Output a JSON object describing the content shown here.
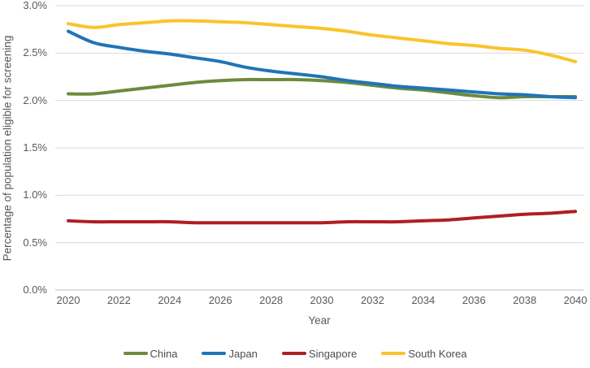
{
  "chart_data": {
    "type": "line",
    "title": "",
    "xlabel": "Year",
    "ylabel": "Percentage of population eligible for screening",
    "x": [
      2020,
      2021,
      2022,
      2023,
      2024,
      2025,
      2026,
      2027,
      2028,
      2029,
      2030,
      2031,
      2032,
      2033,
      2034,
      2035,
      2036,
      2037,
      2038,
      2039,
      2040
    ],
    "xlim": [
      2020,
      2040
    ],
    "ylim": [
      0,
      3
    ],
    "grid": "horizontal",
    "legend_position": "bottom",
    "ytick_values": [
      0,
      0.5,
      1,
      1.5,
      2,
      2.5,
      3
    ],
    "ytick_labels": [
      "0.0%",
      "0.5%",
      "1.0%",
      "1.5%",
      "2.0%",
      "2.5%",
      "3.0%"
    ],
    "xtick_values": [
      2020,
      2022,
      2024,
      2026,
      2028,
      2030,
      2032,
      2034,
      2036,
      2038,
      2040
    ],
    "xtick_labels": [
      "2020",
      "2022",
      "2024",
      "2026",
      "2028",
      "2030",
      "2032",
      "2034",
      "2036",
      "2038",
      "2040"
    ],
    "series": [
      {
        "name": "China",
        "color": "#6C8B3C",
        "values": [
          2.07,
          2.07,
          2.1,
          2.13,
          2.16,
          2.19,
          2.21,
          2.22,
          2.22,
          2.22,
          2.21,
          2.19,
          2.16,
          2.13,
          2.11,
          2.08,
          2.05,
          2.03,
          2.04,
          2.04,
          2.04
        ]
      },
      {
        "name": "Japan",
        "color": "#2074B7",
        "values": [
          2.73,
          2.61,
          2.56,
          2.52,
          2.49,
          2.45,
          2.41,
          2.35,
          2.31,
          2.28,
          2.25,
          2.21,
          2.18,
          2.15,
          2.13,
          2.11,
          2.09,
          2.07,
          2.06,
          2.04,
          2.03
        ]
      },
      {
        "name": "Singapore",
        "color": "#B01E23",
        "values": [
          0.73,
          0.72,
          0.72,
          0.72,
          0.72,
          0.71,
          0.71,
          0.71,
          0.71,
          0.71,
          0.71,
          0.72,
          0.72,
          0.72,
          0.73,
          0.74,
          0.76,
          0.78,
          0.8,
          0.81,
          0.83
        ]
      },
      {
        "name": "South Korea",
        "color": "#FBC32C",
        "values": [
          2.81,
          2.77,
          2.8,
          2.82,
          2.84,
          2.84,
          2.83,
          2.82,
          2.8,
          2.78,
          2.76,
          2.73,
          2.69,
          2.66,
          2.63,
          2.6,
          2.58,
          2.55,
          2.53,
          2.48,
          2.41
        ]
      }
    ]
  },
  "style_colors": {
    "gridline": "#D9D9D9",
    "axis_line": "#BFBFBF",
    "tick_text": "#595959",
    "legend_text": "#4D4D4D"
  }
}
